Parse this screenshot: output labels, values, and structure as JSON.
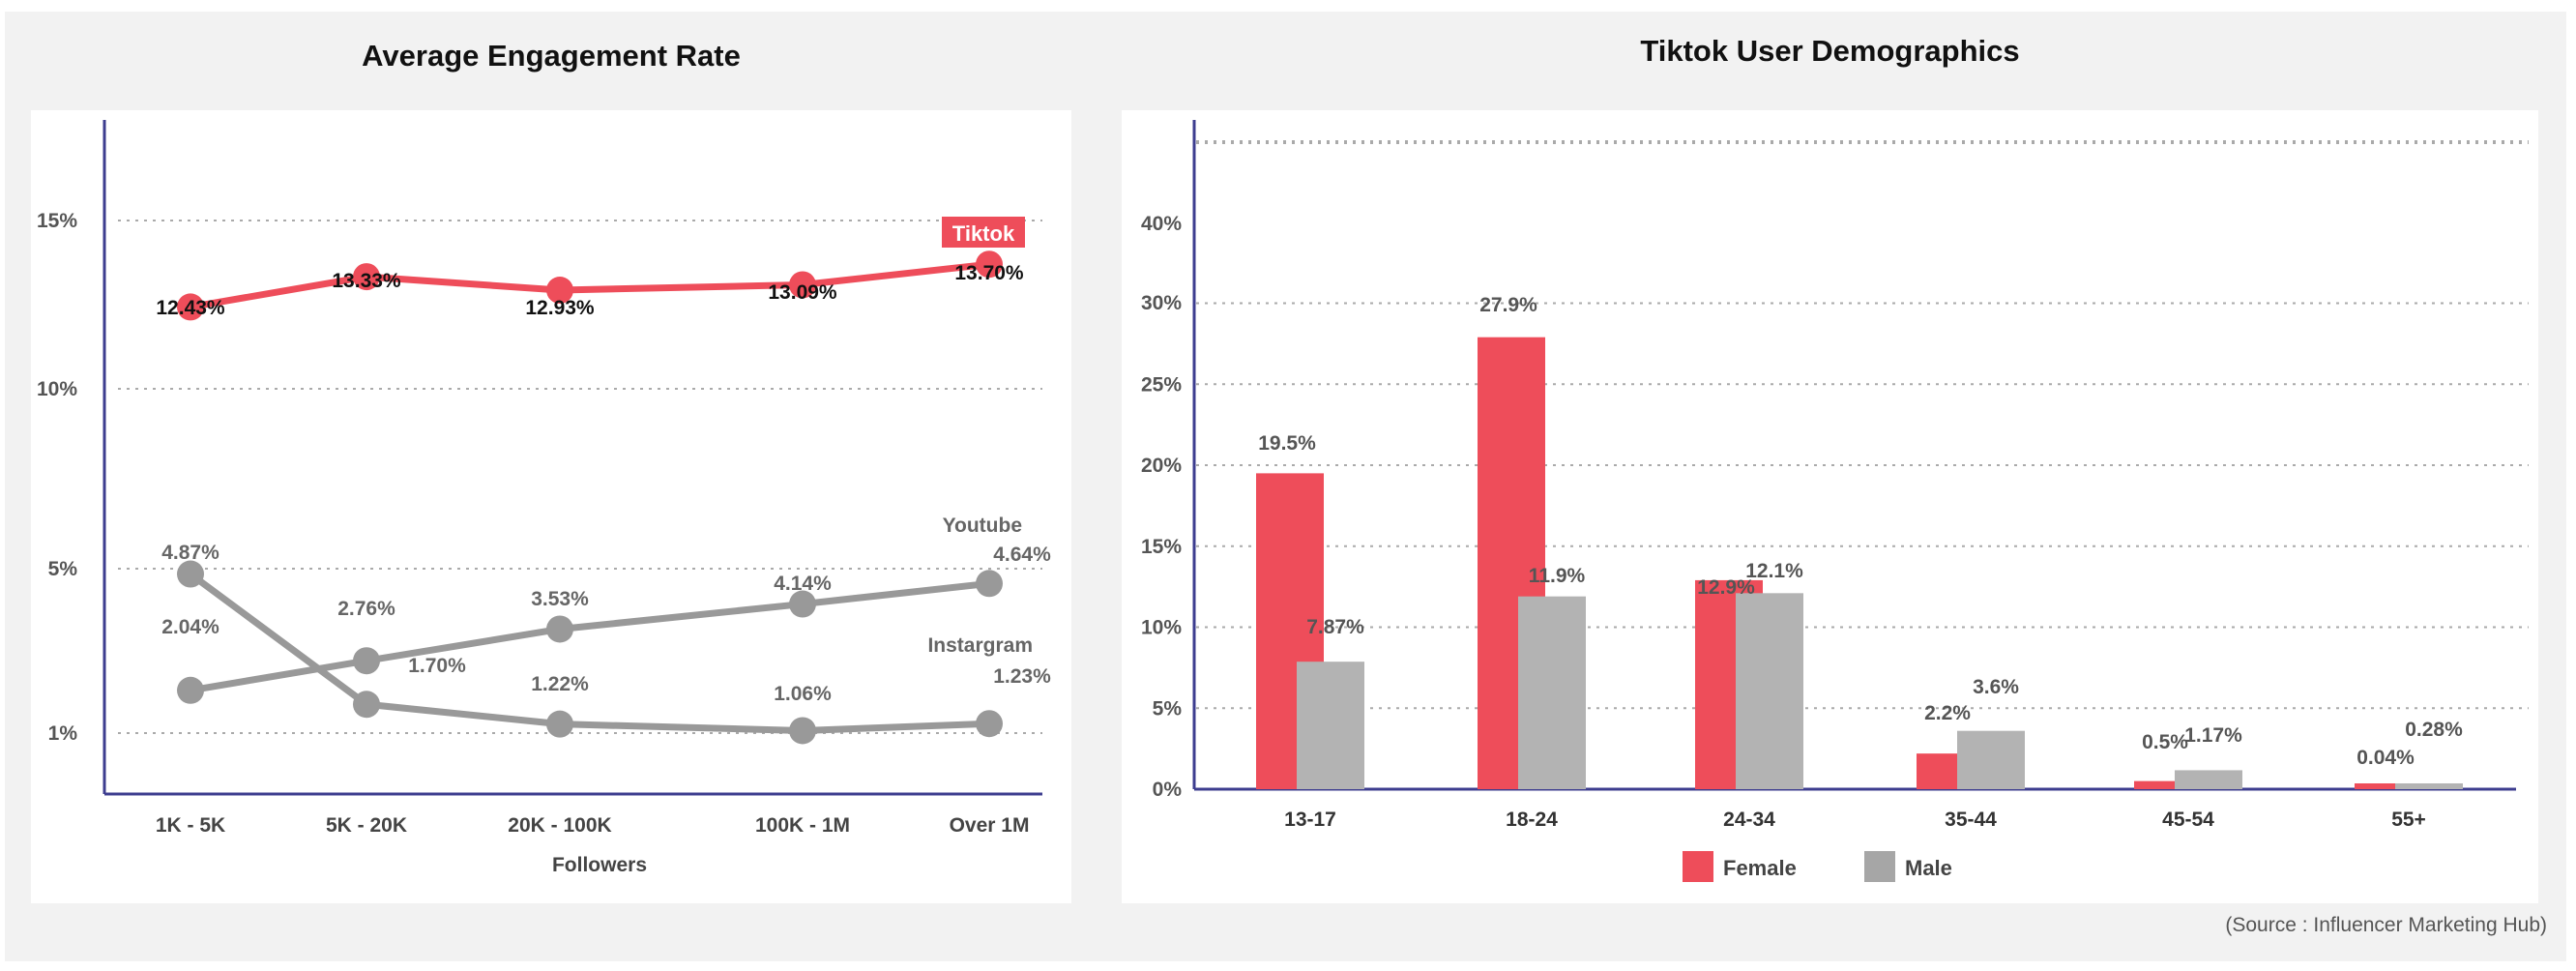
{
  "colors": {
    "tiktok": "#ee4d5a",
    "gray": "#999999",
    "male": "#b3b3b3",
    "axis": "#3d3d8f",
    "grid": "#aaaaaa"
  },
  "source": "(Source : Influencer Marketing Hub)",
  "chart_data": [
    {
      "type": "line",
      "title": "Average Engagement Rate",
      "xlabel": "Followers",
      "ylabel": "",
      "categories": [
        "1K - 5K",
        "5K - 20K",
        "20K - 100K",
        "100K - 1M",
        "Over 1M"
      ],
      "y_ticks": [
        "15%",
        "10%",
        "5%",
        "1%"
      ],
      "series": [
        {
          "name": "Tiktok",
          "values": [
            12.43,
            13.33,
            12.93,
            13.09,
            13.7
          ],
          "labels": [
            "12.43%",
            "13.33%",
            "12.93%",
            "13.09%",
            "13.70%"
          ]
        },
        {
          "name": "Youtube",
          "values": [
            2.04,
            2.76,
            3.53,
            4.14,
            4.64
          ],
          "labels": [
            "2.04%",
            "2.76%",
            "3.53%",
            "4.14%",
            "4.64%"
          ]
        },
        {
          "name": "Instargram",
          "values": [
            4.87,
            1.7,
            1.22,
            1.06,
            1.23
          ],
          "labels": [
            "4.87%",
            "1.70%",
            "1.22%",
            "1.06%",
            "1.23%"
          ]
        }
      ],
      "grid": true
    },
    {
      "type": "bar",
      "title": "Tiktok User Demographics",
      "xlabel": "",
      "ylabel": "",
      "categories": [
        "13-17",
        "18-24",
        "24-34",
        "35-44",
        "45-54",
        "55+"
      ],
      "ylim": [
        0,
        45
      ],
      "y_ticks": [
        "0%",
        "5%",
        "10%",
        "15%",
        "20%",
        "25%",
        "30%",
        "40%"
      ],
      "series": [
        {
          "name": "Female",
          "values": [
            19.5,
            27.9,
            12.9,
            2.2,
            0.5,
            0.04
          ],
          "labels": [
            "19.5%",
            "27.9%",
            "12.9%",
            "2.2%",
            "0.5%",
            "0.04%"
          ]
        },
        {
          "name": "Male",
          "values": [
            7.87,
            11.9,
            12.1,
            3.6,
            1.17,
            0.28
          ],
          "labels": [
            "7.87%",
            "11.9%",
            "12.1%",
            "3.6%",
            "1.17%",
            "0.28%"
          ]
        }
      ],
      "legend": "bottom",
      "grid": true
    }
  ]
}
